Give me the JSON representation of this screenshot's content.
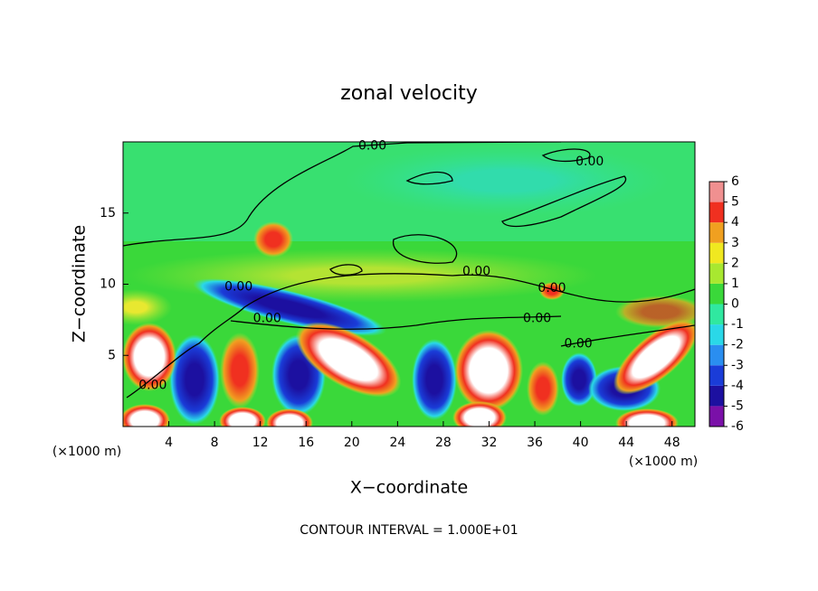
{
  "chart_data": {
    "type": "contour",
    "title": "zonal velocity",
    "xlabel": "X−coordinate",
    "ylabel": "Z−coordinate",
    "x_unit": "(×1000 m)",
    "y_unit": "(×1000 m)",
    "footer": "CONTOUR INTERVAL = 1.000E+01",
    "xlim": [
      0,
      50
    ],
    "ylim": [
      0,
      20
    ],
    "xticks": [
      4,
      8,
      12,
      16,
      20,
      24,
      28,
      32,
      36,
      40,
      44,
      48
    ],
    "yticks": [
      5,
      10,
      15
    ],
    "colorbar": {
      "lim": [
        -6,
        6
      ],
      "ticks": [
        -6,
        -5,
        -4,
        -3,
        -2,
        -1,
        0,
        1,
        2,
        3,
        4,
        5,
        6
      ],
      "colors": [
        "#7a10a8",
        "#1c10a0",
        "#1a3cd8",
        "#2a8ef0",
        "#2ad8e8",
        "#30e8a0",
        "#3ad83a",
        "#a8e830",
        "#f0e820",
        "#f0a020",
        "#f03020",
        "#f09090"
      ]
    },
    "contour_labels": [
      {
        "text": "0.00",
        "x": 21.8,
        "z": 19.7
      },
      {
        "text": "0.00",
        "x": 40.8,
        "z": 18.6
      },
      {
        "text": "0.00",
        "x": 30.9,
        "z": 10.9
      },
      {
        "text": "0.00",
        "x": 37.5,
        "z": 9.7
      },
      {
        "text": "0.00",
        "x": 10.1,
        "z": 9.8
      },
      {
        "text": "0.00",
        "x": 36.2,
        "z": 7.6
      },
      {
        "text": "0.00",
        "x": 12.6,
        "z": 7.6
      },
      {
        "text": "0.00",
        "x": 39.8,
        "z": 5.8
      },
      {
        "text": "0.00",
        "x": 2.6,
        "z": 2.9
      }
    ]
  }
}
